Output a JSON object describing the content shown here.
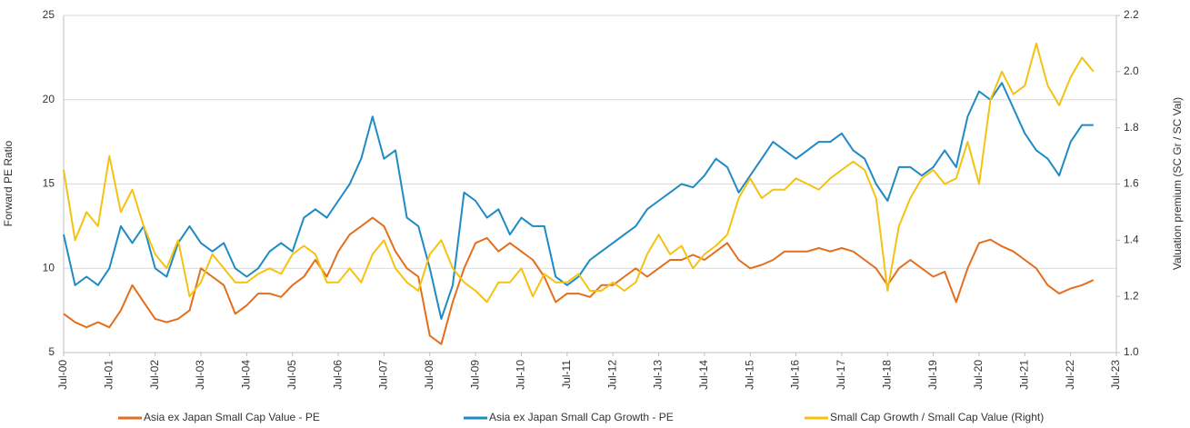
{
  "chart_data": {
    "type": "line",
    "y_label": "Forward PE Ratio",
    "y2_label": "Valuation premium (SC Gr / SC Val)",
    "categories": [
      "Jul-00",
      null,
      null,
      null,
      "Jul-01",
      null,
      null,
      null,
      "Jul-02",
      null,
      null,
      null,
      "Jul-03",
      null,
      null,
      null,
      "Jul-04",
      null,
      null,
      null,
      "Jul-05",
      null,
      null,
      null,
      "Jul-06",
      null,
      null,
      null,
      "Jul-07",
      null,
      null,
      null,
      "Jul-08",
      null,
      null,
      null,
      "Jul-09",
      null,
      null,
      null,
      "Jul-10",
      null,
      null,
      null,
      "Jul-11",
      null,
      null,
      null,
      "Jul-12",
      null,
      null,
      null,
      "Jul-13",
      null,
      null,
      null,
      "Jul-14",
      null,
      null,
      null,
      "Jul-15",
      null,
      null,
      null,
      "Jul-16",
      null,
      null,
      null,
      "Jul-17",
      null,
      null,
      null,
      "Jul-18",
      null,
      null,
      null,
      "Jul-19",
      null,
      null,
      null,
      "Jul-20",
      null,
      null,
      null,
      "Jul-21",
      null,
      null,
      null,
      "Jul-22",
      null,
      null,
      null,
      "Jul-23"
    ],
    "ylim": [
      5,
      25
    ],
    "yticks": [
      5,
      10,
      15,
      20,
      25
    ],
    "y2lim": [
      1.0,
      2.2
    ],
    "y2ticks": [
      {
        "value": 1.0,
        "label": "1.0"
      },
      1.2,
      1.4,
      1.6,
      1.8,
      {
        "value": 2.0,
        "label": "2.0"
      },
      2.2
    ],
    "grid": true,
    "legend": "bottom",
    "series": [
      {
        "name": "Asia ex Japan Small Cap Value - PE",
        "color": "#e36f1e",
        "values": [
          7.3,
          6.8,
          6.5,
          6.8,
          6.5,
          7.5,
          9.0,
          8.0,
          7.0,
          6.8,
          7.0,
          7.5,
          10.0,
          9.5,
          9.0,
          7.3,
          7.8,
          8.5,
          8.5,
          8.3,
          9.0,
          9.5,
          10.5,
          9.5,
          11.0,
          12.0,
          12.5,
          13.0,
          12.5,
          11.0,
          10.0,
          9.5,
          6.0,
          5.5,
          8.0,
          10.0,
          11.5,
          11.8,
          11.0,
          11.5,
          11.0,
          10.5,
          9.5,
          8.0,
          8.5,
          8.5,
          8.3,
          9.0,
          9.0,
          9.5,
          10.0,
          9.5,
          10.0,
          10.5,
          10.5,
          10.8,
          10.5,
          11.0,
          11.5,
          10.5,
          10.0,
          10.2,
          10.5,
          11.0,
          11.0,
          11.0,
          11.2,
          11.0,
          11.2,
          11.0,
          10.5,
          10.0,
          9.0,
          10.0,
          10.5,
          10.0,
          9.5,
          9.8,
          8.0,
          10.0,
          11.5,
          11.7,
          11.3,
          11.0,
          10.5,
          10.0,
          9.0,
          8.5,
          8.8,
          9.0,
          9.3,
          null,
          null
        ]
      },
      {
        "name": "Asia ex Japan Small Cap Growth - PE",
        "color": "#1f8bc3",
        "values": [
          12.0,
          9.0,
          9.5,
          9.0,
          10.0,
          12.5,
          11.5,
          12.5,
          10.0,
          9.5,
          11.5,
          12.5,
          11.5,
          11.0,
          11.5,
          10.0,
          9.5,
          10.0,
          11.0,
          11.5,
          11.0,
          13.0,
          13.5,
          13.0,
          14.0,
          15.0,
          16.5,
          19.0,
          16.5,
          17.0,
          13.0,
          12.5,
          10.0,
          7.0,
          9.0,
          14.5,
          14.0,
          13.0,
          13.5,
          12.0,
          13.0,
          12.5,
          12.5,
          9.5,
          9.0,
          9.5,
          10.5,
          11.0,
          11.5,
          12.0,
          12.5,
          13.5,
          14.0,
          14.5,
          15.0,
          14.8,
          15.5,
          16.5,
          16.0,
          14.5,
          15.5,
          16.5,
          17.5,
          17.0,
          16.5,
          17.0,
          17.5,
          17.5,
          18.0,
          17.0,
          16.5,
          15.0,
          14.0,
          16.0,
          16.0,
          15.5,
          16.0,
          17.0,
          16.0,
          19.0,
          20.5,
          20.0,
          21.0,
          19.5,
          18.0,
          17.0,
          16.5,
          15.5,
          17.5,
          18.5,
          18.5,
          null,
          null
        ]
      },
      {
        "name": "Small Cap Growth / Small Cap Value (Right)",
        "color": "#f5c211",
        "axis": "y2",
        "values": [
          1.65,
          1.4,
          1.5,
          1.45,
          1.7,
          1.5,
          1.58,
          1.45,
          1.35,
          1.3,
          1.4,
          1.2,
          1.25,
          1.35,
          1.3,
          1.25,
          1.25,
          1.28,
          1.3,
          1.28,
          1.35,
          1.38,
          1.35,
          1.25,
          1.25,
          1.3,
          1.25,
          1.35,
          1.4,
          1.3,
          1.25,
          1.22,
          1.35,
          1.4,
          1.3,
          1.25,
          1.22,
          1.18,
          1.25,
          1.25,
          1.3,
          1.2,
          1.28,
          1.25,
          1.25,
          1.28,
          1.22,
          1.22,
          1.25,
          1.22,
          1.25,
          1.35,
          1.42,
          1.35,
          1.38,
          1.3,
          1.35,
          1.38,
          1.42,
          1.55,
          1.62,
          1.55,
          1.58,
          1.58,
          1.62,
          1.6,
          1.58,
          1.62,
          1.65,
          1.68,
          1.65,
          1.55,
          1.22,
          1.45,
          1.55,
          1.62,
          1.65,
          1.6,
          1.62,
          1.75,
          1.6,
          1.9,
          2.0,
          1.92,
          1.95,
          2.1,
          1.95,
          1.88,
          1.98,
          2.05,
          2.0,
          null,
          null
        ]
      }
    ]
  }
}
